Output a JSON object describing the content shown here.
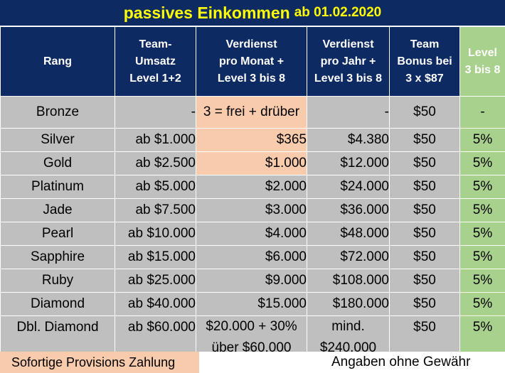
{
  "title": {
    "main": "passives Einkommen",
    "date": "ab 01.02.2020"
  },
  "headers": {
    "rang": "Rang",
    "umsatz": [
      "Team-",
      "Umsatz",
      "Level 1+2"
    ],
    "monat": [
      "Verdienst",
      "pro Monat +",
      "Level 3 bis 8"
    ],
    "jahr": [
      "Verdienst",
      "pro Jahr +",
      "Level 3 bis 8"
    ],
    "bonus": [
      "Team",
      "Bonus bei",
      "3 x $87"
    ],
    "level": [
      "Level",
      "3 bis 8"
    ]
  },
  "rows": [
    {
      "rang": "Bronze",
      "umsatz": "-",
      "monat": "3 = frei + drüber",
      "jahr": "-",
      "bonus": "$50",
      "level": "-"
    },
    {
      "rang": "Silver",
      "umsatz": "ab $1.000",
      "monat": "$365",
      "jahr": "$4.380",
      "bonus": "$50",
      "level": "5%"
    },
    {
      "rang": "Gold",
      "umsatz": "ab $2.500",
      "monat": "$1.000",
      "jahr": "$12.000",
      "bonus": "$50",
      "level": "5%"
    },
    {
      "rang": "Platinum",
      "umsatz": "ab $5.000",
      "monat": "$2.000",
      "jahr": "$24.000",
      "bonus": "$50",
      "level": "5%"
    },
    {
      "rang": "Jade",
      "umsatz": "ab $7.500",
      "monat": "$3.000",
      "jahr": "$36.000",
      "bonus": "$50",
      "level": "5%"
    },
    {
      "rang": "Pearl",
      "umsatz": "ab $10.000",
      "monat": "$4.000",
      "jahr": "$48.000",
      "bonus": "$50",
      "level": "5%"
    },
    {
      "rang": "Sapphire",
      "umsatz": "ab $15.000",
      "monat": "$6.000",
      "jahr": "$72.000",
      "bonus": "$50",
      "level": "5%"
    },
    {
      "rang": "Ruby",
      "umsatz": "ab $25.000",
      "monat": "$9.000",
      "jahr": "$108.000",
      "bonus": "$50",
      "level": "5%"
    },
    {
      "rang": "Diamond",
      "umsatz": "ab $40.000",
      "monat": "$15.000",
      "jahr": "$180.000",
      "bonus": "$50",
      "level": "5%"
    }
  ],
  "last_row": {
    "rang": "Dbl. Diamond",
    "umsatz": "ab $60.000",
    "monat": [
      "$20.000 + 30%",
      "über $60.000"
    ],
    "jahr": [
      "mind.",
      "$240.000"
    ],
    "bonus": "$50",
    "level": "5%"
  },
  "footer": {
    "left": "Sofortige Provisions Zahlung",
    "right": "Angaben ohne Gewähr"
  },
  "colors": {
    "header": "#0d2a62",
    "title_text": "#ffff00",
    "green": "#a9d18e",
    "peach": "#f8cbad",
    "grey": "#bfbfbf"
  }
}
